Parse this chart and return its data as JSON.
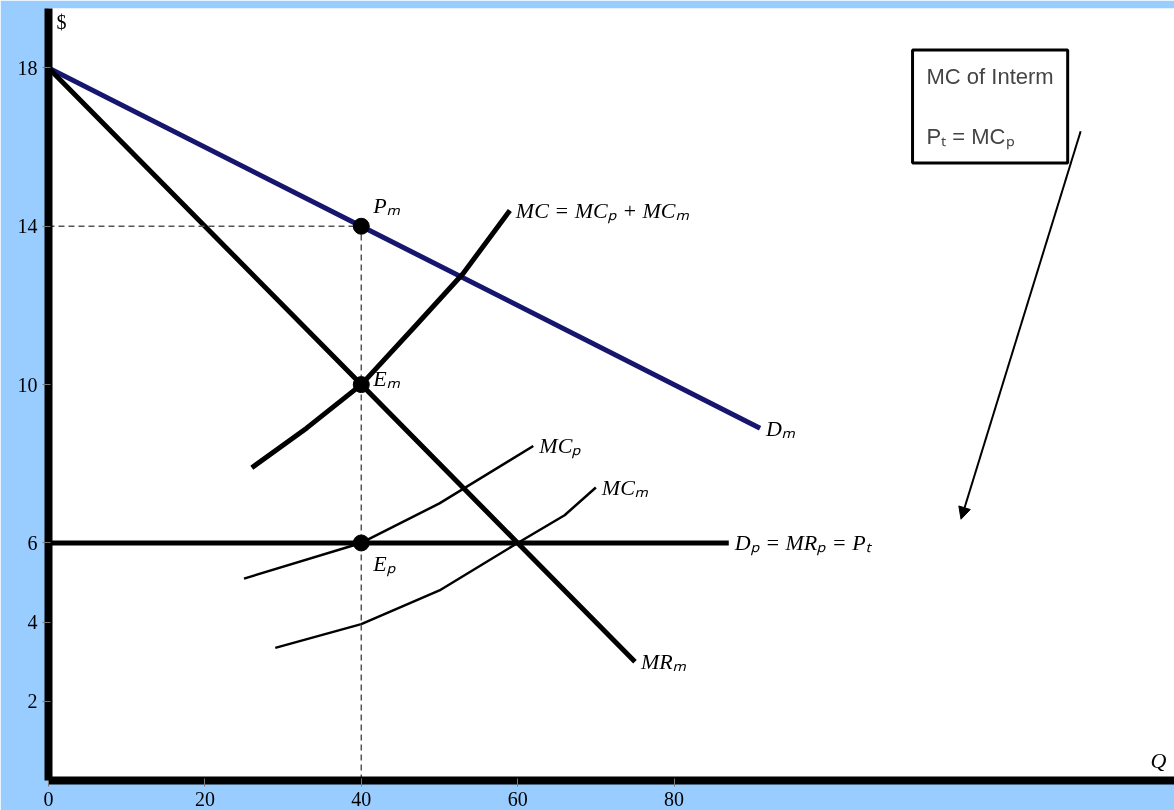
{
  "chart_data": {
    "type": "line",
    "xlabel": "Q",
    "ylabel": "$",
    "xlim": [
      0,
      144
    ],
    "ylim": [
      0,
      19.5
    ],
    "xticks": [
      0,
      20,
      40,
      60,
      80
    ],
    "yticks": [
      2,
      4,
      6,
      10,
      14,
      18
    ],
    "grid": false,
    "marker": "none",
    "series": [
      {
        "name": "Dₘ",
        "color": "#16166e",
        "x": [
          0,
          40,
          91
        ],
        "values": [
          18,
          14,
          8.9
        ]
      },
      {
        "name": "MRₘ",
        "color": "#000000",
        "x": [
          0,
          40,
          60,
          75
        ],
        "values": [
          18,
          10,
          6,
          3
        ]
      },
      {
        "name": "MC = MCₚ + MCₘ",
        "color": "#000000",
        "x": [
          26,
          33,
          40,
          47,
          53,
          59
        ],
        "values": [
          7.9,
          8.9,
          10,
          11.5,
          12.8,
          14.4
        ]
      },
      {
        "name": "MCₚ",
        "color": "#000000",
        "x": [
          25,
          40,
          50,
          62
        ],
        "values": [
          5.1,
          6,
          7,
          8.45
        ]
      },
      {
        "name": "MCₘ",
        "color": "#000000",
        "x": [
          29,
          40,
          50,
          60,
          66,
          70
        ],
        "values": [
          3.35,
          3.95,
          4.8,
          6,
          6.7,
          7.4
        ]
      },
      {
        "name": "Dₚ = MRₚ = Pₜ",
        "color": "#000000",
        "x": [
          0,
          87
        ],
        "values": [
          6,
          6
        ]
      },
      {
        "color": "#555555",
        "line_style": "dashed",
        "x": [
          0,
          40
        ],
        "values": [
          14,
          14
        ]
      },
      {
        "color": "#555555",
        "line_style": "dashed",
        "x": [
          40,
          40
        ],
        "values": [
          0,
          14
        ]
      },
      {
        "type": "scatter",
        "marker": "circle",
        "color": "#000000",
        "x": [
          40,
          40,
          40
        ],
        "values": [
          14,
          10,
          6
        ],
        "value_labels": [
          "Pₘ",
          "Eₘ",
          "Eₚ"
        ]
      }
    ],
    "annotations": [
      "MC of Interm",
      "Pₜ = MCₚ"
    ]
  }
}
